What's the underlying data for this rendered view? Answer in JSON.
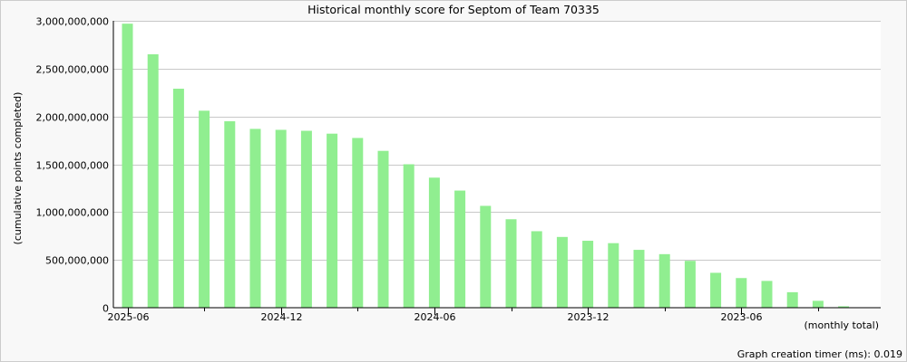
{
  "chart_data": {
    "type": "bar",
    "title": "Historical monthly score for Septom of Team 70335",
    "ylabel": "(cumulative points completed)",
    "xlabel": "(monthly total)",
    "ylim": [
      0,
      3000000000
    ],
    "yticks": [
      0,
      500000000,
      1000000000,
      1500000000,
      2000000000,
      2500000000,
      3000000000
    ],
    "ytick_labels": [
      "0",
      "500,000,000",
      "1,000,000,000",
      "1,500,000,000",
      "2,000,000,000",
      "2,500,000,000",
      "3,000,000,000"
    ],
    "categories": [
      "2025-06",
      "2025-05",
      "2025-04",
      "2025-03",
      "2025-02",
      "2025-01",
      "2024-12",
      "2024-11",
      "2024-10",
      "2024-09",
      "2024-08",
      "2024-07",
      "2024-06",
      "2024-05",
      "2024-04",
      "2024-03",
      "2024-02",
      "2024-01",
      "2023-12",
      "2023-11",
      "2023-10",
      "2023-09",
      "2023-08",
      "2023-07",
      "2023-06",
      "2023-05",
      "2023-04",
      "2023-03",
      "2023-02",
      "2023-01"
    ],
    "x_tick_labels": [
      {
        "index": 0,
        "label": "2025-06"
      },
      {
        "index": 6,
        "label": "2024-12"
      },
      {
        "index": 12,
        "label": "2024-06"
      },
      {
        "index": 18,
        "label": "2023-12"
      },
      {
        "index": 24,
        "label": "2023-06"
      }
    ],
    "values": [
      2970000000,
      2650000000,
      2290000000,
      2060000000,
      1950000000,
      1870000000,
      1860000000,
      1850000000,
      1820000000,
      1775000000,
      1640000000,
      1500000000,
      1360000000,
      1225000000,
      1065000000,
      925000000,
      800000000,
      740000000,
      700000000,
      675000000,
      605000000,
      560000000,
      490000000,
      365000000,
      310000000,
      280000000,
      162000000,
      72000000,
      15000000,
      0
    ],
    "grid": true,
    "legend": "none",
    "bar_color": "#90ee90",
    "grid_color": "#c8c8c8"
  },
  "footer": {
    "timer_text": "Graph creation timer (ms): 0.019"
  }
}
